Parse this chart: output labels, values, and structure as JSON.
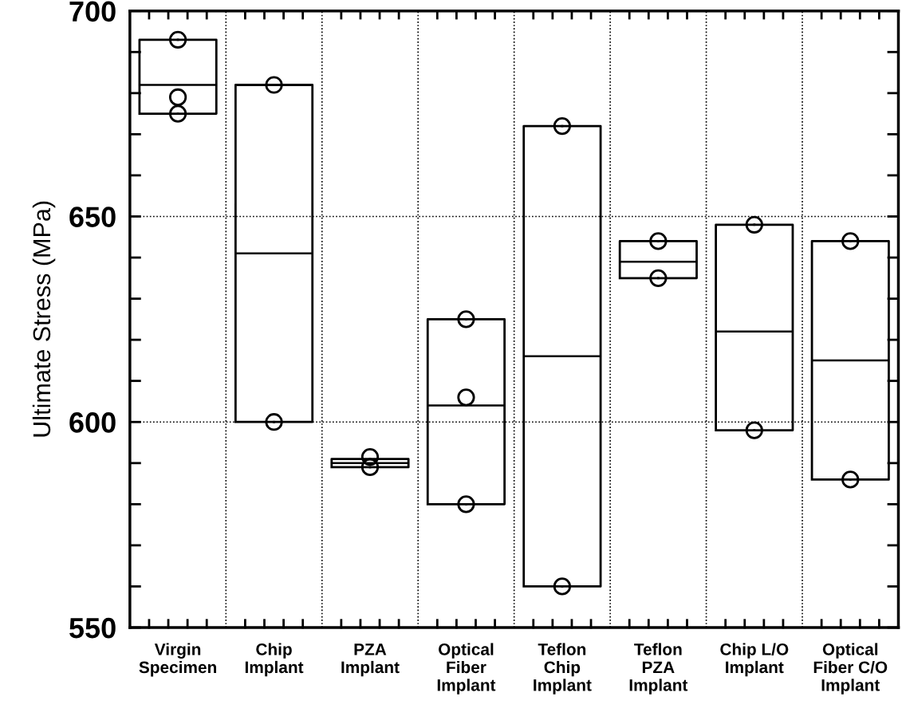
{
  "chart_data": {
    "type": "box",
    "ylabel": "Ultimate Stress (MPa)",
    "categories": [
      "Virgin\nSpecimen",
      "Chip\nImplant",
      "PZA\nImplant",
      "Optical\nFiber\nImplant",
      "Teflon\nChip\nImplant",
      "Teflon\nPZA\nImplant",
      "Chip L/O\nImplant",
      "Optical\nFiber C/O\nImplant"
    ],
    "boxes": [
      {
        "low": 675,
        "q1": 675,
        "median": 682,
        "q3": 693,
        "high": 693
      },
      {
        "low": 600,
        "q1": 600,
        "median": 641,
        "q3": 682,
        "high": 682
      },
      {
        "low": 589,
        "q1": 589,
        "median": 590,
        "q3": 591,
        "high": 591
      },
      {
        "low": 580,
        "q1": 580,
        "median": 604,
        "q3": 625,
        "high": 625
      },
      {
        "low": 560,
        "q1": 560,
        "median": 616,
        "q3": 672,
        "high": 672
      },
      {
        "low": 635,
        "q1": 635,
        "median": 639,
        "q3": 644,
        "high": 644
      },
      {
        "low": 598,
        "q1": 598,
        "median": 622,
        "q3": 648,
        "high": 648
      },
      {
        "low": 586,
        "q1": 586,
        "median": 615,
        "q3": 644,
        "high": 644
      }
    ],
    "series": [
      {
        "type": "scatter",
        "color": "#000000",
        "x": [
          "Virgin\nSpecimen",
          "Virgin\nSpecimen",
          "Virgin\nSpecimen",
          "Chip\nImplant",
          "Chip\nImplant",
          "PZA\nImplant",
          "PZA\nImplant",
          "Optical\nFiber\nImplant",
          "Optical\nFiber\nImplant",
          "Optical\nFiber\nImplant",
          "Teflon\nChip\nImplant",
          "Teflon\nChip\nImplant",
          "Teflon\nPZA\nImplant",
          "Teflon\nPZA\nImplant",
          "Chip L/O\nImplant",
          "Chip L/O\nImplant",
          "Optical\nFiber C/O\nImplant",
          "Optical\nFiber C/O\nImplant"
        ],
        "values": [
          693,
          679,
          675,
          682,
          600,
          591.5,
          589,
          625,
          606,
          580,
          672,
          560,
          644,
          635,
          648,
          598,
          644,
          586
        ]
      }
    ],
    "marker": "circle",
    "ylim": [
      550,
      700
    ],
    "yticks": [
      550,
      {
        "value": 560,
        "label": null
      },
      {
        "value": 570,
        "label": null
      },
      {
        "value": 580,
        "label": null
      },
      {
        "value": 590,
        "label": null
      },
      600,
      {
        "value": 610,
        "label": null
      },
      {
        "value": 620,
        "label": null
      },
      {
        "value": 630,
        "label": null
      },
      {
        "value": 640,
        "label": null
      },
      650,
      {
        "value": 660,
        "label": null
      },
      {
        "value": 670,
        "label": null
      },
      {
        "value": 680,
        "label": null
      },
      {
        "value": 690,
        "label": null
      },
      700
    ],
    "grid": true
  }
}
